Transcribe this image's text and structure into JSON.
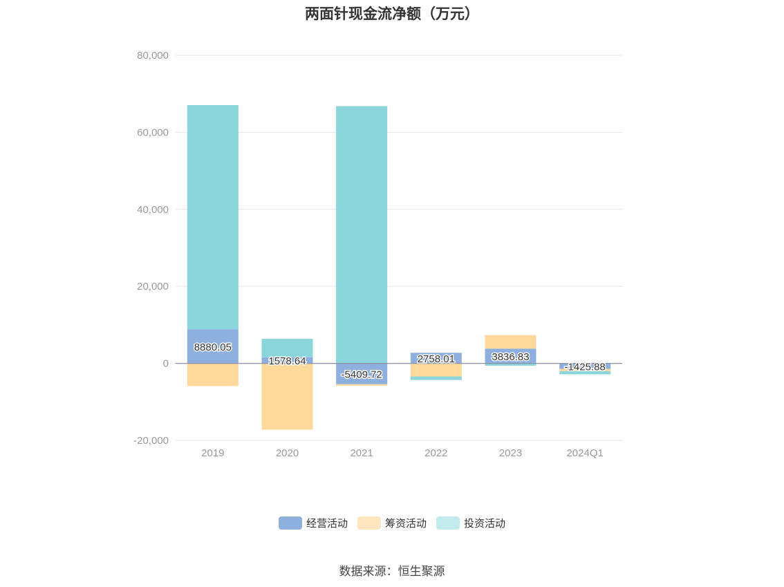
{
  "chart_data": {
    "type": "bar",
    "stacked": true,
    "title": "两面针现金流净额（万元）",
    "categories": [
      "2019",
      "2020",
      "2021",
      "2022",
      "2023",
      "2024Q1"
    ],
    "series": [
      {
        "name": "经营活动",
        "color": "#8fb0de",
        "values": [
          8880.05,
          1578.64,
          -5409.72,
          2758.01,
          3836.83,
          -1425.88
        ],
        "labels": [
          "8880.05",
          "1578.64",
          "-5409.72",
          "2758.01",
          "3836.83",
          "-1425.88"
        ]
      },
      {
        "name": "筹资活动",
        "color": "#ffd99b",
        "values": [
          -5900,
          -17200,
          -400,
          -3400,
          3500,
          -600
        ]
      },
      {
        "name": "投资活动",
        "color": "#89d5d9",
        "values": [
          58200,
          4800,
          66800,
          -900,
          -600,
          -800
        ]
      }
    ],
    "ylim": [
      -20000,
      80000
    ],
    "yticks": [
      -20000,
      0,
      20000,
      40000,
      60000,
      80000
    ],
    "ytick_labels": [
      "-20,000",
      "0",
      "20,000",
      "40,000",
      "60,000",
      "80,000"
    ],
    "grid": true,
    "legend_position": "bottom-center"
  },
  "legend": {
    "items": [
      {
        "label": "经营活动",
        "color": "#8fb0de"
      },
      {
        "label": "筹资活动",
        "color": "#ffe6bf"
      },
      {
        "label": "投资活动",
        "color": "#c3eaec"
      }
    ]
  },
  "source": "数据来源：恒生聚源"
}
